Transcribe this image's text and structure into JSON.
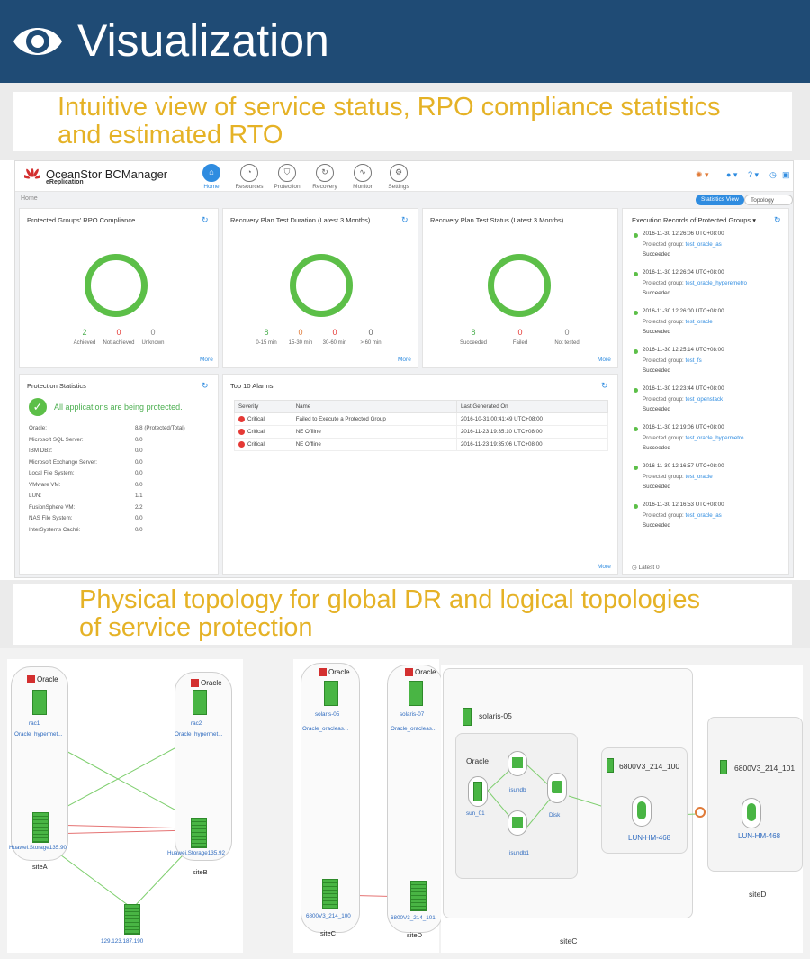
{
  "banner": {
    "title": "Visualization"
  },
  "caption1": {
    "line1": "Intuitive view of service status, RPO compliance statistics",
    "line2": "and estimated RTO"
  },
  "caption2": {
    "line1": "Physical topology for global DR and logical topologies",
    "line2": "of service protection"
  },
  "app": {
    "brand": "OceanStor BCManager",
    "subbrand": "eReplication",
    "nav": [
      {
        "label": "Home",
        "icon": "home-icon"
      },
      {
        "label": "Resources",
        "icon": "resources-icon"
      },
      {
        "label": "Protection",
        "icon": "shield-icon"
      },
      {
        "label": "Recovery",
        "icon": "recovery-icon"
      },
      {
        "label": "Monitor",
        "icon": "monitor-icon"
      },
      {
        "label": "Settings",
        "icon": "gear-icon"
      }
    ],
    "breadcrumb": "Home",
    "view_statistics": "Statistics View",
    "view_topology": "Topology View"
  },
  "rpo": {
    "title": "Protected Groups' RPO Compliance",
    "stats": [
      {
        "value": "2",
        "label": "Achieved",
        "color": "#4caf50"
      },
      {
        "value": "0",
        "label": "Not achieved",
        "color": "#e53935"
      },
      {
        "value": "0",
        "label": "Unknown",
        "color": "#888888"
      }
    ],
    "more": "More"
  },
  "duration": {
    "title": "Recovery Plan Test Duration (Latest 3 Months)",
    "stats": [
      {
        "value": "8",
        "label": "0-15 min",
        "color": "#4caf50"
      },
      {
        "value": "0",
        "label": "15-30 min",
        "color": "#e07b39"
      },
      {
        "value": "0",
        "label": "30-60 min",
        "color": "#e53935"
      },
      {
        "value": "0",
        "label": "> 60 min",
        "color": "#666666"
      }
    ],
    "more": "More"
  },
  "teststatus": {
    "title": "Recovery Plan Test Status (Latest 3 Months)",
    "stats": [
      {
        "value": "8",
        "label": "Succeeded",
        "color": "#4caf50"
      },
      {
        "value": "0",
        "label": "Failed",
        "color": "#e53935"
      },
      {
        "value": "0",
        "label": "Not tested",
        "color": "#888888"
      }
    ],
    "more": "More"
  },
  "protection": {
    "title": "Protection Statistics",
    "banner": "All applications are being protected.",
    "rows": [
      {
        "name": "Oracle:",
        "value": "8/8 (Protected/Total)"
      },
      {
        "name": "Microsoft SQL Server:",
        "value": "0/0"
      },
      {
        "name": "IBM DB2:",
        "value": "0/0"
      },
      {
        "name": "Microsoft Exchange Server:",
        "value": "0/0"
      },
      {
        "name": "Local File System:",
        "value": "0/0"
      },
      {
        "name": "VMware VM:",
        "value": "0/0"
      },
      {
        "name": "LUN:",
        "value": "1/1"
      },
      {
        "name": "FusionSphere VM:",
        "value": "2/2"
      },
      {
        "name": "NAS File System:",
        "value": "0/0"
      },
      {
        "name": "InterSystems Caché:",
        "value": "0/0"
      }
    ]
  },
  "alarms": {
    "title": "Top 10 Alarms",
    "headers": [
      "Severity",
      "Name",
      "Last Generated On"
    ],
    "rows": [
      {
        "severity": "Critical",
        "name": "Failed to Execute a Protected Group",
        "time": "2016-10-31 00:41:49 UTC+08:00"
      },
      {
        "severity": "Critical",
        "name": "NE Offline",
        "time": "2016-11-23 19:35:10 UTC+08:00"
      },
      {
        "severity": "Critical",
        "name": "NE Offline",
        "time": "2016-11-23 19:35:06 UTC+08:00"
      }
    ],
    "more": "More"
  },
  "execution": {
    "title": "Execution Records of Protected Groups",
    "group_label": "Protected group:",
    "items": [
      {
        "time": "2016-11-30 12:26:06 UTC+08:00",
        "group": "test_oracle_as",
        "status": "Succeeded"
      },
      {
        "time": "2016-11-30 12:26:04 UTC+08:00",
        "group": "test_oracle_hyperemetro",
        "status": "Succeeded"
      },
      {
        "time": "2016-11-30 12:26:00 UTC+08:00",
        "group": "test_oracle",
        "status": "Succeeded"
      },
      {
        "time": "2016-11-30 12:25:14 UTC+08:00",
        "group": "test_fs",
        "status": "Succeeded"
      },
      {
        "time": "2016-11-30 12:23:44 UTC+08:00",
        "group": "test_openstack",
        "status": "Succeeded"
      },
      {
        "time": "2016-11-30 12:19:06 UTC+08:00",
        "group": "test_oracle_hypermetro",
        "status": "Succeeded"
      },
      {
        "time": "2016-11-30 12:16:57 UTC+08:00",
        "group": "test_oracle",
        "status": "Succeeded"
      },
      {
        "time": "2016-11-30 12:16:53 UTC+08:00",
        "group": "test_oracle_as",
        "status": "Succeeded"
      }
    ],
    "footer": "Latest 0"
  },
  "topology1": {
    "oracle": "Oracle",
    "nodes": {
      "rac1": "rac1",
      "rac1_name": "Oracle_hypermet...",
      "rac2": "rac2",
      "rac2_name": "Oracle_hypermet...",
      "storageA": "Huawei.Storage135.90",
      "storageB": "Huawei.Storage135.92",
      "quorum": "129.123.187.190"
    },
    "siteA": "siteA",
    "siteB": "siteB"
  },
  "topology2": {
    "oracle": "Oracle",
    "nodeL": "solaris-05",
    "nodeL_name": "Oracle_oracleas...",
    "nodeR": "solaris-07",
    "nodeR_name": "Oracle_oracleas...",
    "storL": "6800V3_214_100",
    "storR": "6800V3_214_101",
    "siteC": "siteC",
    "siteD": "siteD"
  },
  "topology3": {
    "host": "solaris-05",
    "oracle": "Oracle",
    "sun": "sun_01",
    "isundb": "isundb",
    "isundb1": "isundb1",
    "disk": "Disk",
    "stor1": "6800V3_214_100",
    "stor2": "6800V3_214_101",
    "lun1": "LUN-HM-468",
    "lun2": "LUN-HM-468",
    "siteC": "siteC",
    "siteD": "siteD"
  }
}
